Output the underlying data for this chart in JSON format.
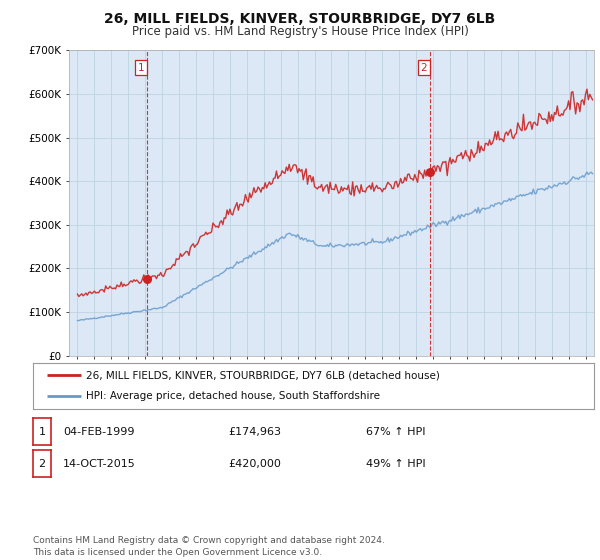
{
  "title": "26, MILL FIELDS, KINVER, STOURBRIDGE, DY7 6LB",
  "subtitle": "Price paid vs. HM Land Registry's House Price Index (HPI)",
  "transactions": [
    {
      "date_num": 1999.09,
      "price": 174963,
      "label": "1"
    },
    {
      "date_num": 2015.79,
      "price": 420000,
      "label": "2"
    }
  ],
  "legend_entries": [
    {
      "label": "26, MILL FIELDS, KINVER, STOURBRIDGE, DY7 6LB (detached house)",
      "color": "#cc2222",
      "lw": 1.5
    },
    {
      "label": "HPI: Average price, detached house, South Staffordshire",
      "color": "#6699cc",
      "lw": 1.5
    }
  ],
  "table_rows": [
    {
      "num": "1",
      "date": "04-FEB-1999",
      "price": "£174,963",
      "change": "67% ↑ HPI"
    },
    {
      "num": "2",
      "date": "14-OCT-2015",
      "price": "£420,000",
      "change": "49% ↑ HPI"
    }
  ],
  "footer": "Contains HM Land Registry data © Crown copyright and database right 2024.\nThis data is licensed under the Open Government Licence v3.0.",
  "ylim": [
    0,
    700000
  ],
  "yticks": [
    0,
    100000,
    200000,
    300000,
    400000,
    500000,
    600000,
    700000
  ],
  "ytick_labels": [
    "£0",
    "£100K",
    "£200K",
    "£300K",
    "£400K",
    "£500K",
    "£600K",
    "£700K"
  ],
  "xlim": [
    1994.5,
    2025.5
  ],
  "background_color": "#ffffff",
  "plot_bg_color": "#dce8f5",
  "shade_color": "#dce8f5",
  "grid_color": "#b8cfe0",
  "vline_color": "#cc2222",
  "title_fontsize": 10,
  "subtitle_fontsize": 8.5
}
